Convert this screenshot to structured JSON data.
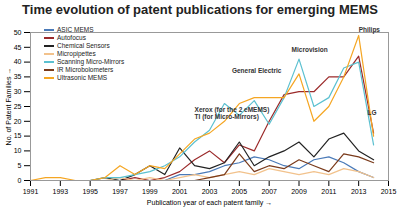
{
  "chart_data": {
    "type": "line",
    "title": "Time evolution of patent publications for emerging MEMS",
    "x_label": "Publication year of each patent family",
    "y_label": "No. of Patent Families",
    "x": [
      1991,
      1992,
      1993,
      1994,
      1995,
      1996,
      1997,
      1998,
      1999,
      2000,
      2001,
      2002,
      2003,
      2004,
      2005,
      2006,
      2007,
      2008,
      2009,
      2010,
      2011,
      2012,
      2013,
      2014
    ],
    "series": [
      {
        "name": "ASIC MEMS",
        "color": "#4a7ab8",
        "values": [
          0,
          0,
          0,
          0,
          0,
          0,
          0,
          0,
          0,
          0,
          2,
          2,
          3,
          5,
          6,
          8,
          7,
          5,
          4,
          7,
          8,
          6,
          3,
          1
        ]
      },
      {
        "name": "Autofocus",
        "color": "#9b2a2a",
        "values": [
          0,
          0,
          0,
          0,
          0,
          0,
          0,
          1,
          0,
          1,
          3,
          7,
          10,
          6,
          12,
          10,
          20,
          29,
          30,
          30,
          35,
          35,
          42,
          16
        ]
      },
      {
        "name": "Chemical Sensors",
        "color": "#222222",
        "values": [
          0,
          0,
          0,
          0,
          0,
          1,
          0,
          2,
          5,
          2,
          11,
          5,
          4,
          6,
          13,
          5,
          8,
          10,
          13,
          8,
          14,
          16,
          10,
          7
        ]
      },
      {
        "name": "Micropipettes",
        "color": "#f2c28c",
        "values": [
          0,
          0,
          0,
          0,
          0,
          0,
          1,
          0,
          1,
          0,
          1,
          2,
          1,
          2,
          3,
          2,
          4,
          3,
          2,
          3,
          2,
          4,
          3,
          1
        ]
      },
      {
        "name": "Scanning Micro-Mirrors",
        "color": "#5bc0d0",
        "values": [
          0,
          0,
          0,
          0,
          0,
          1,
          1,
          2,
          3,
          5,
          8,
          13,
          17,
          26,
          22,
          27,
          19,
          28,
          41,
          25,
          28,
          38,
          40,
          12
        ]
      },
      {
        "name": "IR Microbolometers",
        "color": "#7a3a1a",
        "values": [
          0,
          0,
          0,
          0,
          0,
          0,
          0,
          0,
          0,
          0,
          0,
          0,
          1,
          2,
          9,
          3,
          5,
          4,
          7,
          5,
          3,
          9,
          8,
          6
        ]
      },
      {
        "name": "Ultrasonic MEMS",
        "color": "#f5a623",
        "values": [
          0,
          1,
          1,
          0,
          0,
          1,
          5,
          2,
          5,
          4,
          9,
          14,
          16,
          20,
          26,
          28,
          28,
          28,
          36,
          20,
          25,
          35,
          49,
          15
        ]
      }
    ],
    "annotations": [
      {
        "text": "Xerox (for the 2 eMEMS)",
        "x": 2002,
        "y": 24
      },
      {
        "text": "TI (for Micro-Mirrors)",
        "x": 2002,
        "y": 21.5
      },
      {
        "text": "General Electric",
        "x": 2004.5,
        "y": 37
      },
      {
        "text": "Microvision",
        "x": 2008.5,
        "y": 44
      },
      {
        "text": "Philips",
        "x": 2013,
        "y": 51
      },
      {
        "text": "LG",
        "x": 2013.6,
        "y": 23
      }
    ],
    "xlim": [
      1991,
      2015
    ],
    "xticks": [
      1991,
      1993,
      1995,
      1997,
      1999,
      2001,
      2003,
      2005,
      2007,
      2009,
      2011,
      2013,
      2015
    ],
    "ylim": [
      0,
      50
    ],
    "yticks": [
      0,
      5,
      10,
      15,
      20,
      25,
      30,
      35,
      40,
      45,
      50
    ],
    "grid": false,
    "legend": "top-left"
  }
}
